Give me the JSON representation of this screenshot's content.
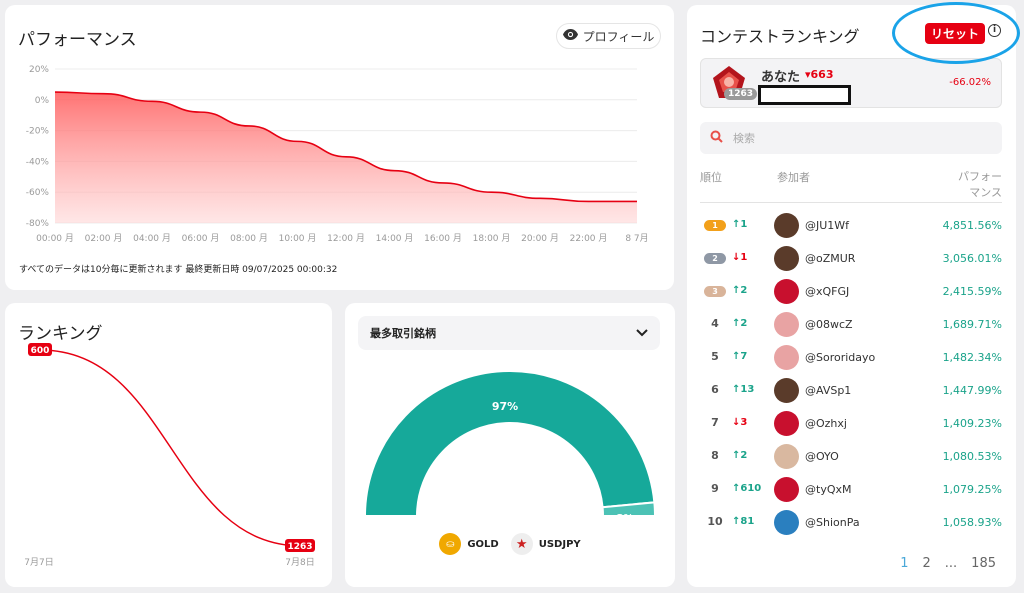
{
  "performance": {
    "title": "パフォーマンス",
    "profile_label": "プロフィール",
    "update_note": "すべてのデータは10分毎に更新されます 最終更新日時 09/07/2025 00:00:32"
  },
  "ranking": {
    "title": "ランキング"
  },
  "top_traded": {
    "select_label": "最多取引銘柄",
    "legend": [
      {
        "icon": "gold-coin-icon",
        "label": "GOLD"
      },
      {
        "icon": "us-flag-icon",
        "label": "USDJPY"
      }
    ]
  },
  "contest": {
    "title": "コンテストランキング",
    "reset_label": "リセット",
    "you": {
      "rank": "1263",
      "name": "あなた",
      "change": "▾663",
      "perf": "-66.02%"
    },
    "search_placeholder": "検索",
    "headers": {
      "rank": "順位",
      "participant": "参加者",
      "perf": "パフォーマンス",
      "perf_line1": "パフォー",
      "perf_line2": "マンス"
    },
    "rows": [
      {
        "rank": "1",
        "change": "↑1",
        "dir": "up",
        "name": "@JU1Wf",
        "perf": "4,851.56%"
      },
      {
        "rank": "2",
        "change": "↓1",
        "dir": "down",
        "name": "@oZMUR",
        "perf": "3,056.01%"
      },
      {
        "rank": "3",
        "change": "↑2",
        "dir": "up",
        "name": "@xQFGJ",
        "perf": "2,415.59%"
      },
      {
        "rank": "4",
        "change": "↑2",
        "dir": "up",
        "name": "@08wcZ",
        "perf": "1,689.71%"
      },
      {
        "rank": "5",
        "change": "↑7",
        "dir": "up",
        "name": "@Sororidayo",
        "perf": "1,482.34%"
      },
      {
        "rank": "6",
        "change": "↑13",
        "dir": "up",
        "name": "@AVSp1",
        "perf": "1,447.99%"
      },
      {
        "rank": "7",
        "change": "↓3",
        "dir": "down",
        "name": "@Ozhxj",
        "perf": "1,409.23%"
      },
      {
        "rank": "8",
        "change": "↑2",
        "dir": "up",
        "name": "@OYO",
        "perf": "1,080.53%"
      },
      {
        "rank": "9",
        "change": "↑610",
        "dir": "up",
        "name": "@tyQxM",
        "perf": "1,079.25%"
      },
      {
        "rank": "10",
        "change": "↑81",
        "dir": "up",
        "name": "@ShionPa",
        "perf": "1,058.93%"
      }
    ],
    "pagination": [
      "1",
      "2",
      "...",
      "185"
    ]
  },
  "colors": {
    "loss": "#e60012",
    "gain": "#1aa38a",
    "gauge": "#16a99a",
    "highlight": "#1aa3e8"
  },
  "chart_data": [
    {
      "type": "area",
      "title": "パフォーマンス",
      "y_ticks": [
        "20%",
        "0%",
        "-20%",
        "-40%",
        "-60%",
        "-80%"
      ],
      "y_tick_values": [
        20,
        0,
        -20,
        -40,
        -60,
        -80
      ],
      "x_ticks": [
        "00:00 月",
        "02:00 月",
        "04:00 月",
        "06:00 月",
        "08:00 月",
        "10:00 月",
        "12:00 月",
        "14:00 月",
        "16:00 月",
        "18:00 月",
        "20:00 月",
        "22:00 月",
        "8 7月"
      ],
      "ylim": [
        -80,
        20
      ],
      "x": [
        0,
        2,
        4,
        6,
        8,
        10,
        12,
        14,
        16,
        18,
        20,
        22,
        24
      ],
      "values": [
        5,
        4,
        -1,
        -8,
        -17,
        -27,
        -37,
        -46,
        -54,
        -60,
        -64,
        -66,
        -66
      ],
      "grid": true
    },
    {
      "type": "line",
      "title": "ランキング",
      "x_ticks": [
        "7月7日",
        "7月8日"
      ],
      "start_label": "600",
      "end_label": "1263",
      "values": [
        600,
        1263
      ],
      "inverted": true
    },
    {
      "type": "pie",
      "title": "最多取引銘柄",
      "categories": [
        "GOLD",
        "USDJPY"
      ],
      "values": [
        97,
        3
      ],
      "labels": [
        "97%",
        "3%"
      ]
    }
  ]
}
